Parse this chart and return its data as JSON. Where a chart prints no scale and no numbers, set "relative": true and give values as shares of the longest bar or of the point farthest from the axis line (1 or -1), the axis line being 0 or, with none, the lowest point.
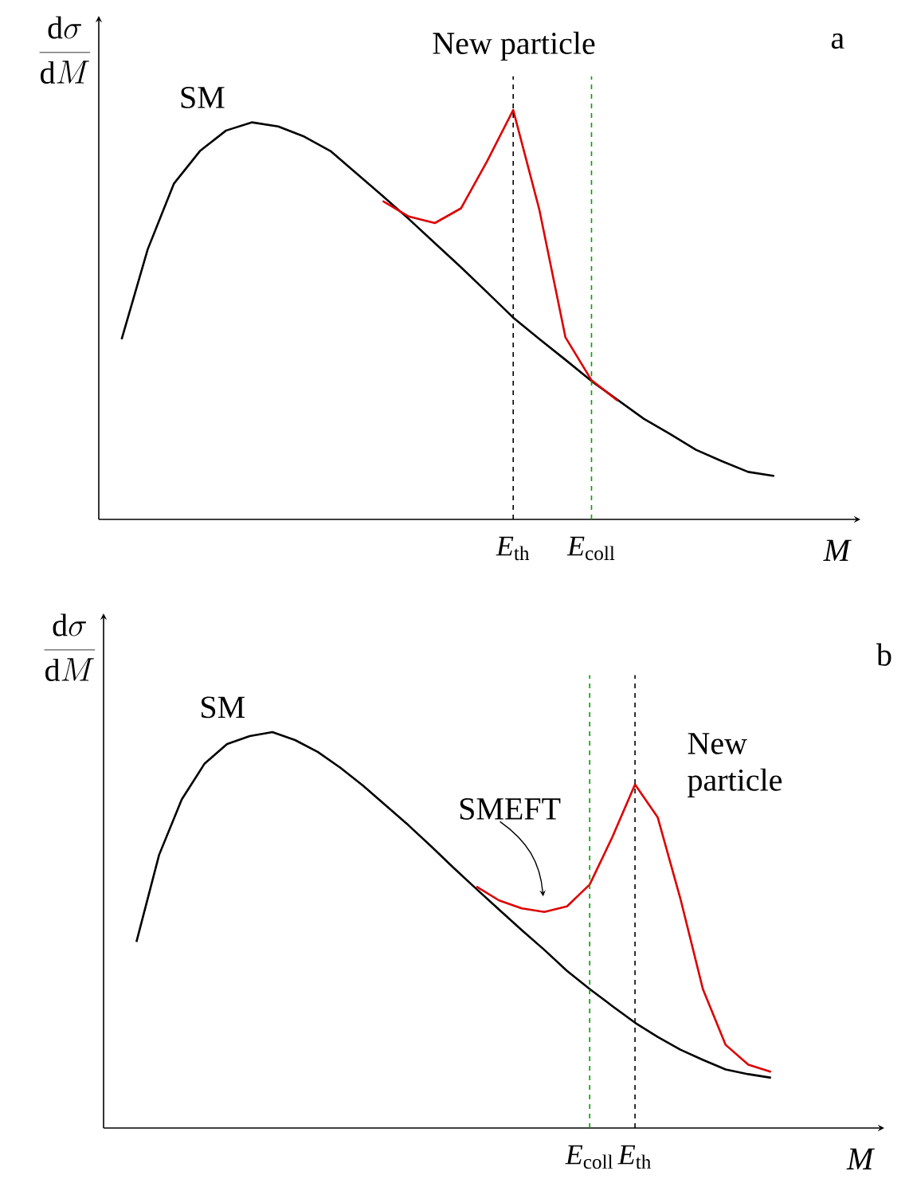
{
  "chart_data": [
    {
      "type": "line",
      "relative": true,
      "xlabel": "*M*",
      "ylabel": "\\frac{\\mathrm{d}\\sigma}{\\mathrm{d}M}",
      "categories": [
        null,
        null,
        null,
        null,
        null,
        null,
        null,
        null,
        null,
        null,
        null,
        null,
        null,
        null,
        null,
        "*E*$_{th}$",
        null,
        null,
        "*E*$_{coll}$",
        null,
        null,
        null,
        null,
        null,
        null,
        null
      ],
      "series": [
        {
          "name": "SM",
          "color": "#000000",
          "values": [
            0.44,
            0.66,
            0.82,
            0.9,
            0.95,
            0.97,
            0.96,
            0.935,
            0.9,
            0.845,
            0.79,
            0.734,
            0.675,
            0.616,
            0.555,
            0.493,
            0.441,
            0.39,
            0.338,
            0.292,
            0.246,
            0.209,
            0.17,
            0.142,
            0.116,
            0.106
          ]
        },
        {
          "color": "#dd0000",
          "values": [
            null,
            null,
            null,
            null,
            null,
            null,
            null,
            null,
            null,
            null,
            0.778,
            0.74,
            0.724,
            0.76,
            0.875,
            1.0,
            0.757,
            0.445,
            0.34,
            0.29,
            null,
            null,
            null,
            null,
            null,
            null
          ]
        }
      ],
      "ref_lines": [
        {
          "axis": "x",
          "value": "*E*$_{th}$",
          "color": "#000000",
          "line_style": "dashed"
        },
        {
          "axis": "x",
          "value": "*E*$_{coll}$",
          "color": "#00a000",
          "line_style": "dashed"
        }
      ],
      "annotations": [
        "a",
        "New particle"
      ]
    },
    {
      "type": "line",
      "relative": true,
      "xlabel": "*M*",
      "ylabel": "\\frac{\\mathrm{d}\\sigma}{\\mathrm{d}M}",
      "categories": [
        null,
        null,
        null,
        null,
        null,
        null,
        null,
        null,
        null,
        null,
        null,
        null,
        null,
        null,
        null,
        null,
        null,
        null,
        null,
        null,
        "*E*$_{coll}$",
        null,
        "*E*$_{th}$",
        null,
        null,
        null,
        null,
        null,
        null
      ],
      "series": [
        {
          "name": "SM",
          "color": "#000000",
          "values": [
            0.47,
            0.69,
            0.83,
            0.92,
            0.97,
            0.99,
            1.0,
            0.98,
            0.95,
            0.91,
            0.865,
            0.815,
            0.765,
            0.712,
            0.657,
            0.604,
            0.552,
            0.5,
            0.45,
            0.397,
            0.351,
            0.308,
            0.266,
            0.23,
            0.198,
            0.172,
            0.148,
            0.136,
            0.127
          ]
        },
        {
          "color": "#dd0000",
          "values": [
            null,
            null,
            null,
            null,
            null,
            null,
            null,
            null,
            null,
            null,
            null,
            null,
            null,
            null,
            null,
            0.61,
            0.575,
            0.555,
            0.546,
            0.56,
            0.615,
            0.735,
            0.868,
            0.785,
            0.58,
            0.35,
            0.21,
            0.16,
            0.142
          ]
        }
      ],
      "ref_lines": [
        {
          "axis": "x",
          "value": "*E*$_{coll}$",
          "color": "#00a000",
          "line_style": "dashed"
        },
        {
          "axis": "x",
          "value": "*E*$_{th}$",
          "color": "#000000",
          "line_style": "dashed"
        }
      ],
      "annotations": [
        "b",
        "SMEFT",
        "New particle"
      ]
    }
  ]
}
